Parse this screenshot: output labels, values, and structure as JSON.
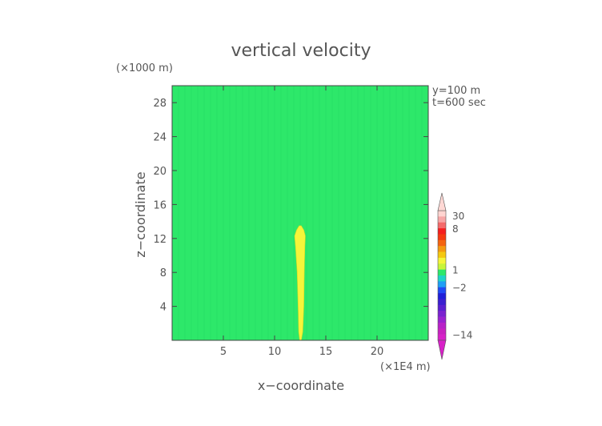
{
  "chart_data": {
    "type": "heatmap",
    "title": "vertical velocity",
    "xlabel": "x−coordinate",
    "ylabel": "z−coordinate",
    "x_unit": "(×1E4 m)",
    "y_unit": "(×1000 m)",
    "xlim": [
      0,
      25
    ],
    "ylim": [
      0,
      30
    ],
    "x_ticks": [
      5,
      10,
      15,
      20
    ],
    "y_ticks": [
      4,
      8,
      12,
      16,
      20,
      24,
      28
    ],
    "annotations": [
      "y=100 m",
      "t=600 sec"
    ],
    "background_value_color": "#2de86a",
    "background_value_range": [
      -2,
      1
    ],
    "plume": {
      "color": "#f5f53a",
      "profile": [
        {
          "z": 0.0,
          "x0": 12.45,
          "x1": 12.6
        },
        {
          "z": 1.0,
          "x0": 12.35,
          "x1": 12.75
        },
        {
          "z": 4.0,
          "x0": 12.3,
          "x1": 12.85
        },
        {
          "z": 8.0,
          "x0": 12.2,
          "x1": 12.9
        },
        {
          "z": 11.0,
          "x0": 12.05,
          "x1": 12.95
        },
        {
          "z": 12.3,
          "x0": 11.95,
          "x1": 13.0
        },
        {
          "z": 13.0,
          "x0": 12.15,
          "x1": 12.85
        },
        {
          "z": 13.5,
          "x0": 12.4,
          "x1": 12.6
        }
      ]
    },
    "colorbar": {
      "labels": [
        {
          "value": 30,
          "text": "30"
        },
        {
          "value": 8,
          "text": "8"
        },
        {
          "value": 1,
          "text": "1"
        },
        {
          "value": -2,
          "text": "−2"
        },
        {
          "value": -14,
          "text": "−14"
        }
      ],
      "bands": [
        {
          "lo": 20,
          "hi": 30,
          "color": "#ffd4d0"
        },
        {
          "lo": 14,
          "hi": 20,
          "color": "#f7a6a6"
        },
        {
          "lo": 8,
          "hi": 14,
          "color": "#f46a6a"
        },
        {
          "lo": 7,
          "hi": 8,
          "color": "#f51e1e"
        },
        {
          "lo": 6,
          "hi": 7,
          "color": "#f53a10"
        },
        {
          "lo": 5,
          "hi": 6,
          "color": "#f56410"
        },
        {
          "lo": 4,
          "hi": 5,
          "color": "#f59a10"
        },
        {
          "lo": 3,
          "hi": 4,
          "color": "#f5c810"
        },
        {
          "lo": 2,
          "hi": 3,
          "color": "#f5f53a"
        },
        {
          "lo": 1,
          "hi": 2,
          "color": "#c8f53a"
        },
        {
          "lo": 0,
          "hi": 1,
          "color": "#2de86a"
        },
        {
          "lo": -1,
          "hi": 0,
          "color": "#1fd4c8"
        },
        {
          "lo": -2,
          "hi": -1,
          "color": "#1f9ef5"
        },
        {
          "lo": -3,
          "hi": -2,
          "color": "#1f4af5"
        },
        {
          "lo": -4,
          "hi": -3,
          "color": "#1f1fd8"
        },
        {
          "lo": -5,
          "hi": -4,
          "color": "#3a1fd0"
        },
        {
          "lo": -6,
          "hi": -5,
          "color": "#5a1fd0"
        },
        {
          "lo": -8,
          "hi": -6,
          "color": "#7a22d0"
        },
        {
          "lo": -10,
          "hi": -8,
          "color": "#9a22d0"
        },
        {
          "lo": -12,
          "hi": -10,
          "color": "#b822c8"
        },
        {
          "lo": -14,
          "hi": -12,
          "color": "#c822c0"
        },
        {
          "lo": -20,
          "hi": -14,
          "color": "#d822c8"
        }
      ],
      "top_arrow_color": "#ffd8d4",
      "bottom_arrow_color": "#d820c8"
    }
  }
}
